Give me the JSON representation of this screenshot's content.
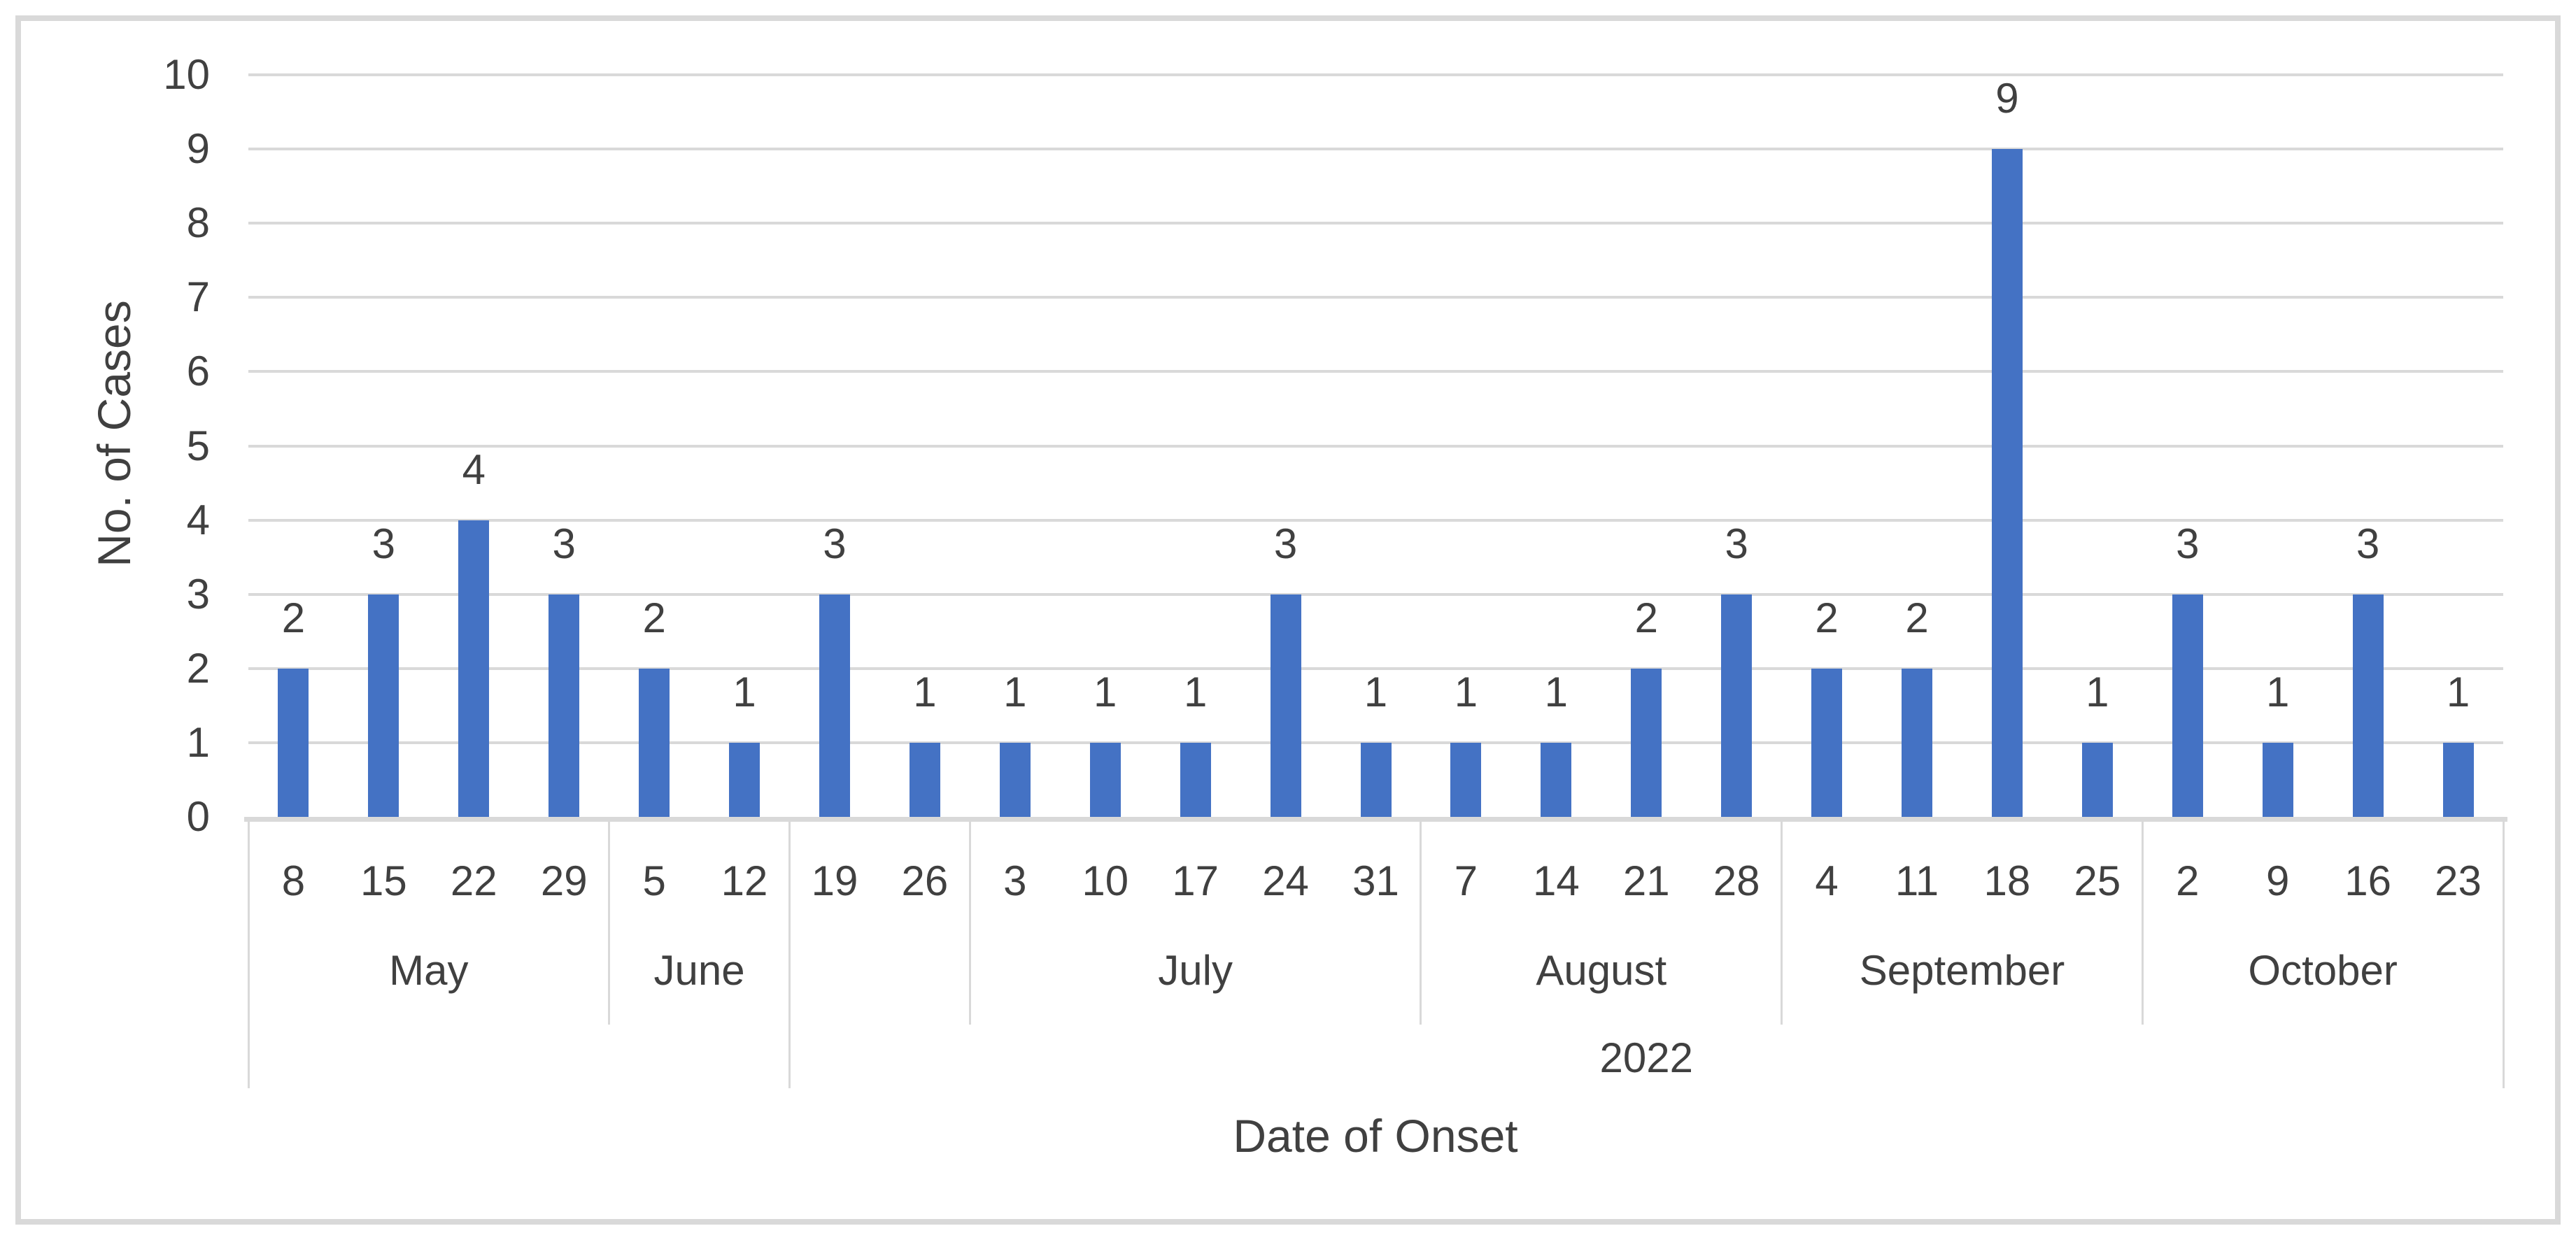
{
  "chart_data": {
    "type": "bar",
    "title": "",
    "xlabel": "Date of Onset",
    "ylabel": "No. of Cases",
    "ylim": [
      0,
      10
    ],
    "yticks": [
      0,
      1,
      2,
      3,
      4,
      5,
      6,
      7,
      8,
      9,
      10
    ],
    "grid": true,
    "legend": false,
    "data_labels": true,
    "bar_color": "#4472C4",
    "grid_color": "#D9D9D9",
    "text_color": "#404040",
    "border_color": "#D9D9D9",
    "groups": [
      {
        "month": "May",
        "days": [
          "8",
          "15",
          "22",
          "29"
        ],
        "values": [
          2,
          3,
          4,
          3
        ]
      },
      {
        "month": "June",
        "days": [
          "5",
          "12"
        ],
        "values": [
          2,
          1
        ]
      },
      {
        "month": "",
        "days": [
          "19",
          "26"
        ],
        "values": [
          3,
          1
        ]
      },
      {
        "month": "July",
        "days": [
          "3",
          "10",
          "17",
          "24",
          "31"
        ],
        "values": [
          1,
          1,
          1,
          3,
          1
        ]
      },
      {
        "month": "August",
        "days": [
          "7",
          "14",
          "21",
          "28"
        ],
        "values": [
          1,
          1,
          2,
          3
        ]
      },
      {
        "month": "September",
        "days": [
          "4",
          "11",
          "18",
          "25"
        ],
        "values": [
          2,
          2,
          9,
          1
        ]
      },
      {
        "month": "October",
        "days": [
          "2",
          "9",
          "16",
          "23"
        ],
        "values": [
          3,
          1,
          3,
          1
        ]
      }
    ],
    "year_spans": [
      {
        "label": "",
        "from_group": 0,
        "to_group": 1
      },
      {
        "label": "2022",
        "from_group": 2,
        "to_group": 6
      }
    ]
  }
}
